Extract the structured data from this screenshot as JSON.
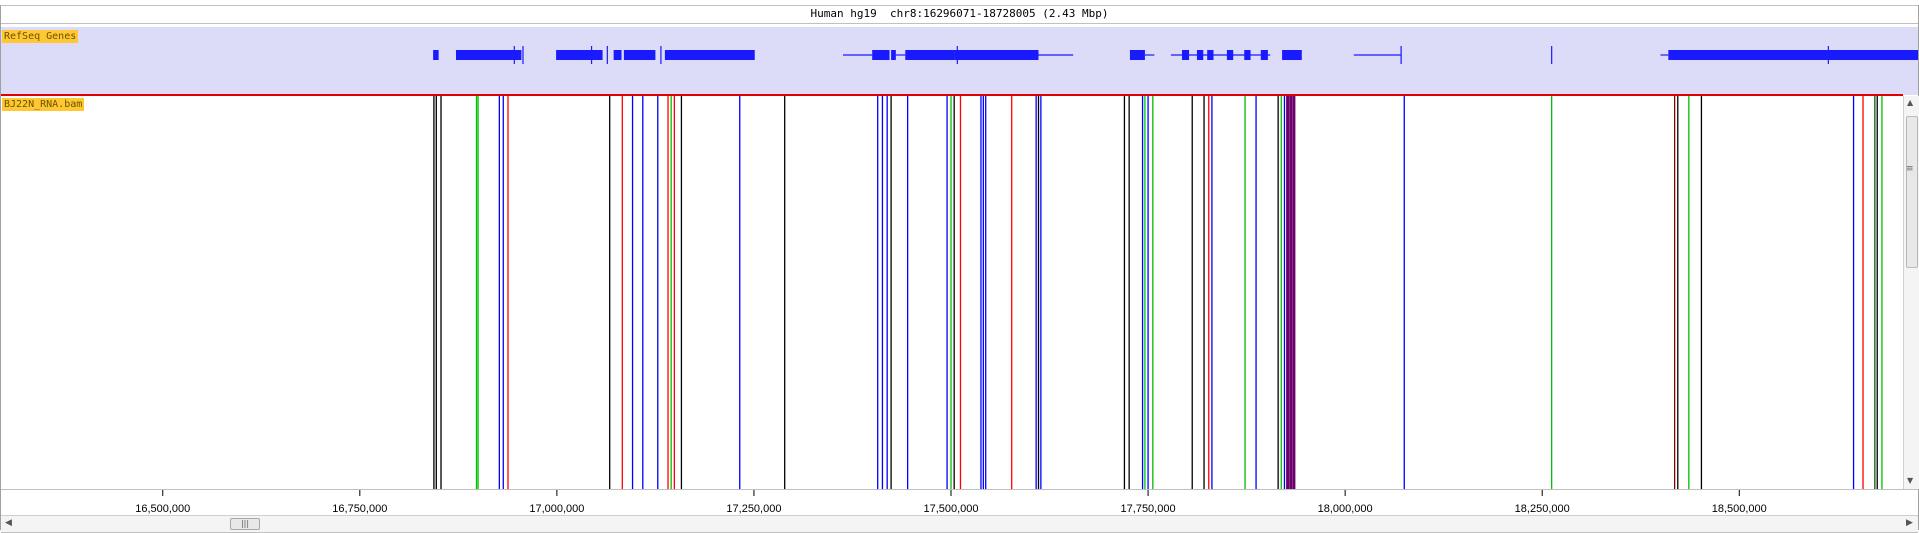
{
  "window": {
    "title": "Human hg19  chr8:16296071-18728005 (2.43 Mbp)"
  },
  "genome": {
    "start": 16296071,
    "end": 18728005
  },
  "tracks": {
    "genes": {
      "label": "RefSeq Genes",
      "color": "#1a1aff",
      "background": "#dcdcf8",
      "features": [
        {
          "type": "exon",
          "start": 16843000,
          "end": 16850000
        },
        {
          "type": "exon",
          "start": 16872000,
          "end": 16955000
        },
        {
          "type": "tick",
          "pos": 16946000
        },
        {
          "type": "tick",
          "pos": 16957000
        },
        {
          "type": "exon",
          "start": 16999000,
          "end": 17058000
        },
        {
          "type": "tick",
          "pos": 17044000
        },
        {
          "type": "tick",
          "pos": 17064000
        },
        {
          "type": "exon",
          "start": 17072000,
          "end": 17082000
        },
        {
          "type": "exon",
          "start": 17085000,
          "end": 17125000
        },
        {
          "type": "tick",
          "pos": 17132000
        },
        {
          "type": "exon",
          "start": 17137000,
          "end": 17251000
        },
        {
          "type": "intron",
          "start": 17363000,
          "end": 17400000
        },
        {
          "type": "exon",
          "start": 17400000,
          "end": 17422000
        },
        {
          "type": "exon",
          "start": 17424000,
          "end": 17430000
        },
        {
          "type": "intron",
          "start": 17430000,
          "end": 17442000
        },
        {
          "type": "exon",
          "start": 17442000,
          "end": 17505000
        },
        {
          "type": "tick",
          "pos": 17508000
        },
        {
          "type": "exon",
          "start": 17505000,
          "end": 17611000
        },
        {
          "type": "intron",
          "start": 17611000,
          "end": 17655000
        },
        {
          "type": "exon",
          "start": 17727000,
          "end": 17746000
        },
        {
          "type": "intron",
          "start": 17746000,
          "end": 17758000
        },
        {
          "type": "intron",
          "start": 17779000,
          "end": 17905000
        },
        {
          "type": "exon",
          "start": 17793000,
          "end": 17802000
        },
        {
          "type": "exon",
          "start": 17812000,
          "end": 17820000
        },
        {
          "type": "exon",
          "start": 17825000,
          "end": 17833000
        },
        {
          "type": "exon",
          "start": 17850000,
          "end": 17858000
        },
        {
          "type": "exon",
          "start": 17872000,
          "end": 17880000
        },
        {
          "type": "exon",
          "start": 17893000,
          "end": 17902000
        },
        {
          "type": "exon",
          "start": 17920000,
          "end": 17945000
        },
        {
          "type": "intron",
          "start": 18011000,
          "end": 18071000
        },
        {
          "type": "tick",
          "pos": 18071000
        },
        {
          "type": "tick",
          "pos": 18262000
        },
        {
          "type": "intron",
          "start": 18400000,
          "end": 18410000
        },
        {
          "type": "exon",
          "start": 18410000,
          "end": 18728005
        },
        {
          "type": "tick",
          "pos": 18613000
        }
      ]
    },
    "bam": {
      "label": "BJ22N_RNA.bam",
      "colors": {
        "k": "#000000",
        "g": "#00c000",
        "b": "#0000ff",
        "r": "#ff0000",
        "m": "#6a006a",
        "dr": "#8b0000",
        "dg": "#006400"
      },
      "variants": [
        {
          "pos": 16844000,
          "c": "k"
        },
        {
          "pos": 16847000,
          "c": "k"
        },
        {
          "pos": 16853000,
          "c": "k"
        },
        {
          "pos": 16898000,
          "c": "g"
        },
        {
          "pos": 16900000,
          "c": "g"
        },
        {
          "pos": 16927000,
          "c": "b"
        },
        {
          "pos": 16932000,
          "c": "b"
        },
        {
          "pos": 16938000,
          "c": "r"
        },
        {
          "pos": 17067000,
          "c": "k"
        },
        {
          "pos": 17083000,
          "c": "r"
        },
        {
          "pos": 17096000,
          "c": "b"
        },
        {
          "pos": 17109000,
          "c": "b"
        },
        {
          "pos": 17128000,
          "c": "b"
        },
        {
          "pos": 17141000,
          "c": "r"
        },
        {
          "pos": 17145000,
          "c": "g"
        },
        {
          "pos": 17149000,
          "c": "r"
        },
        {
          "pos": 17158000,
          "c": "k"
        },
        {
          "pos": 17232000,
          "c": "b"
        },
        {
          "pos": 17289000,
          "c": "k"
        },
        {
          "pos": 17407000,
          "c": "b"
        },
        {
          "pos": 17413000,
          "c": "b"
        },
        {
          "pos": 17419000,
          "c": "b"
        },
        {
          "pos": 17424000,
          "c": "k"
        },
        {
          "pos": 17445000,
          "c": "b"
        },
        {
          "pos": 17495000,
          "c": "b"
        },
        {
          "pos": 17500000,
          "c": "g"
        },
        {
          "pos": 17504000,
          "c": "k"
        },
        {
          "pos": 17512000,
          "c": "r"
        },
        {
          "pos": 17538000,
          "c": "b"
        },
        {
          "pos": 17541000,
          "c": "b"
        },
        {
          "pos": 17544000,
          "c": "b"
        },
        {
          "pos": 17577000,
          "c": "r"
        },
        {
          "pos": 17608000,
          "c": "b"
        },
        {
          "pos": 17611000,
          "c": "k"
        },
        {
          "pos": 17614000,
          "c": "b"
        },
        {
          "pos": 17720000,
          "c": "k"
        },
        {
          "pos": 17726000,
          "c": "k"
        },
        {
          "pos": 17743000,
          "c": "b"
        },
        {
          "pos": 17746000,
          "c": "g"
        },
        {
          "pos": 17750000,
          "c": "b"
        },
        {
          "pos": 17756000,
          "c": "g"
        },
        {
          "pos": 17806000,
          "c": "k"
        },
        {
          "pos": 17821000,
          "c": "k"
        },
        {
          "pos": 17827000,
          "c": "r"
        },
        {
          "pos": 17831000,
          "c": "b"
        },
        {
          "pos": 17873000,
          "c": "g"
        },
        {
          "pos": 17887000,
          "c": "b"
        },
        {
          "pos": 17915000,
          "c": "k"
        },
        {
          "pos": 17919000,
          "c": "g"
        },
        {
          "pos": 17923000,
          "c": "b"
        },
        {
          "pos": 17927000,
          "c": "m"
        },
        {
          "pos": 17931000,
          "c": "m"
        },
        {
          "pos": 17935000,
          "c": "m"
        },
        {
          "pos": 18075000,
          "c": "b"
        },
        {
          "pos": 18262000,
          "c": "g"
        },
        {
          "pos": 18418000,
          "c": "dr"
        },
        {
          "pos": 18422000,
          "c": "k"
        },
        {
          "pos": 18436000,
          "c": "g"
        },
        {
          "pos": 18452000,
          "c": "k"
        },
        {
          "pos": 18645000,
          "c": "b"
        },
        {
          "pos": 18657000,
          "c": "r"
        },
        {
          "pos": 18672000,
          "c": "dg"
        },
        {
          "pos": 18675000,
          "c": "k"
        },
        {
          "pos": 18681000,
          "c": "g"
        }
      ]
    }
  },
  "ruler": {
    "ticks": [
      {
        "pos": 16500000,
        "label": "16,500,000"
      },
      {
        "pos": 16750000,
        "label": "16,750,000"
      },
      {
        "pos": 17000000,
        "label": "17,000,000"
      },
      {
        "pos": 17250000,
        "label": "17,250,000"
      },
      {
        "pos": 17500000,
        "label": "17,500,000"
      },
      {
        "pos": 17750000,
        "label": "17,750,000"
      },
      {
        "pos": 18000000,
        "label": "18,000,000"
      },
      {
        "pos": 18250000,
        "label": "18,250,000"
      },
      {
        "pos": 18500000,
        "label": "18,500,000"
      }
    ]
  },
  "scrollbars": {
    "vertical": {
      "grip": "≡",
      "up": "▲",
      "down": "▼"
    },
    "horizontal": {
      "grip": "|||",
      "left": "◀",
      "right": "▶"
    }
  }
}
